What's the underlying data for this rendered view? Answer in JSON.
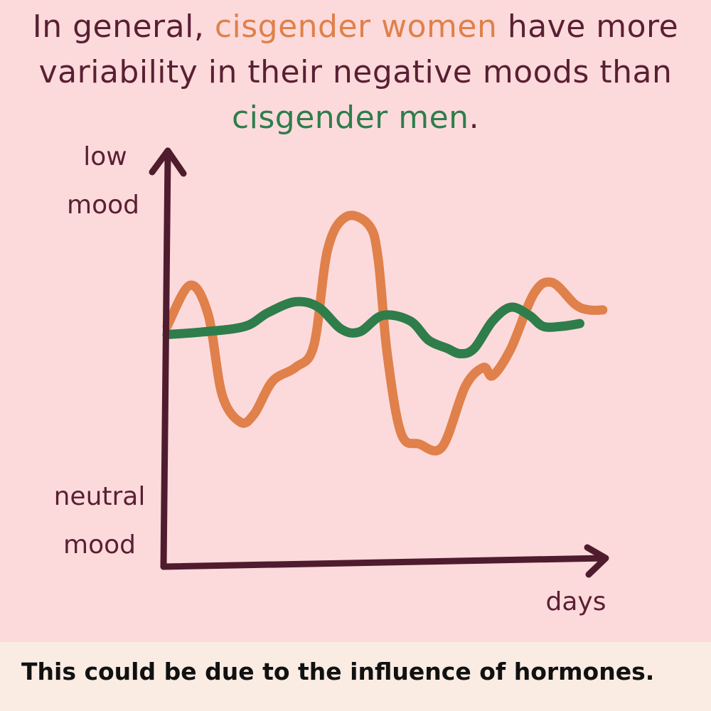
{
  "headline": {
    "part1": "In general, ",
    "women": "cisgender women",
    "part2": " have more variability in their negative moods than ",
    "men": "cisgender men",
    "part3": "."
  },
  "footer": {
    "text": "This could be due to the influence of hormones."
  },
  "chart_data": {
    "type": "line",
    "ylabel_top": [
      "low",
      "mood"
    ],
    "ylabel_bottom": [
      "neutral",
      "mood"
    ],
    "xlabel": "days",
    "x_range": [
      0,
      100
    ],
    "y_range": [
      0,
      100
    ],
    "grid": false,
    "series": [
      {
        "name": "cisgender women",
        "color": "#e0804a",
        "points": [
          [
            0,
            60
          ],
          [
            5,
            75
          ],
          [
            9,
            64
          ],
          [
            12,
            35
          ],
          [
            16,
            25
          ],
          [
            19,
            28
          ],
          [
            23,
            40
          ],
          [
            28,
            45
          ],
          [
            32,
            53
          ],
          [
            35,
            88
          ],
          [
            39,
            100
          ],
          [
            44,
            97
          ],
          [
            46,
            85
          ],
          [
            48,
            50
          ],
          [
            51,
            21
          ],
          [
            55,
            17
          ],
          [
            60,
            16
          ],
          [
            65,
            38
          ],
          [
            69,
            45
          ],
          [
            71,
            42
          ],
          [
            75,
            52
          ],
          [
            80,
            72
          ],
          [
            84,
            76
          ],
          [
            89,
            68
          ],
          [
            92,
            66
          ],
          [
            95,
            66
          ]
        ]
      },
      {
        "name": "cisgender men",
        "color": "#2e7d4b",
        "points": [
          [
            0,
            57
          ],
          [
            8,
            58
          ],
          [
            17,
            60
          ],
          [
            22,
            65
          ],
          [
            28,
            69
          ],
          [
            33,
            67
          ],
          [
            38,
            59
          ],
          [
            42,
            58
          ],
          [
            47,
            64
          ],
          [
            53,
            62
          ],
          [
            57,
            55
          ],
          [
            61,
            52
          ],
          [
            64,
            50
          ],
          [
            67,
            52
          ],
          [
            71,
            62
          ],
          [
            75,
            67
          ],
          [
            79,
            64
          ],
          [
            82,
            60
          ],
          [
            86,
            60
          ],
          [
            90,
            61
          ]
        ]
      }
    ]
  }
}
